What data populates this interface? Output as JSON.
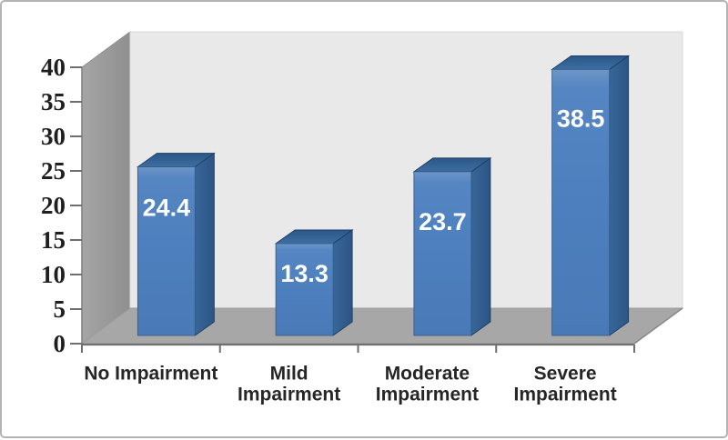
{
  "chart_data": {
    "type": "bar",
    "projection": "3d-column",
    "title": "",
    "xlabel": "",
    "ylabel": "",
    "categories": [
      "No Impairment",
      "Mild Impairment",
      "Moderate Impairment",
      "Severe Impairment"
    ],
    "category_lines": [
      [
        "No Impairment"
      ],
      [
        "Mild",
        "Impairment"
      ],
      [
        "Moderate",
        "Impairment"
      ],
      [
        "Severe",
        "Impairment"
      ]
    ],
    "values": [
      24.4,
      13.3,
      23.7,
      38.5
    ],
    "data_labels": [
      "24.4",
      "13.3",
      "23.7",
      "38.5"
    ],
    "data_label_position": "inside-end",
    "ylim": [
      0,
      40
    ],
    "ytick_interval": 5,
    "yticks": [
      0,
      5,
      10,
      15,
      20,
      25,
      30,
      35,
      40
    ],
    "ytick_labels": [
      "0",
      "5",
      "10",
      "15",
      "20",
      "25",
      "30",
      "35",
      "40"
    ],
    "grid": false,
    "legend": "none",
    "colors": {
      "bar_front": "#4d7fbe",
      "bar_front_highlight": "#6e95c7",
      "bar_side": "#2f5c8c",
      "bar_top": "#2a5787",
      "bar_outline": "#1c3c62",
      "wall_back": "#e9e9e9",
      "wall_side": "#9a9a9a",
      "floor": "#a7a7a7",
      "axis_line": "#707070",
      "tick_color": "#6f6f6f",
      "axis_text": "#1f1f1f",
      "category_text": "#262626",
      "value_text": "#fdfdfd",
      "frame_border": "#b3b3b3",
      "background": "#ffffff"
    }
  }
}
